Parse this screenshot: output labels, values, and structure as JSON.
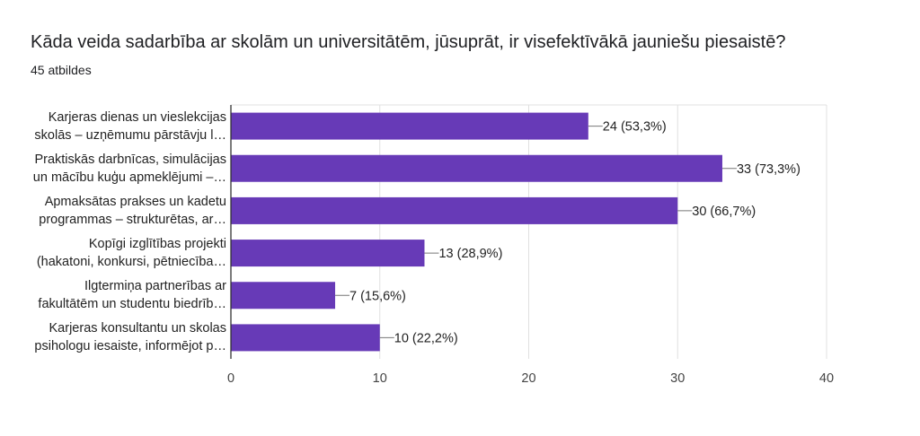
{
  "header": {
    "question": "Kāda veida sadarbība ar skolām un universitātēm, jūsuprāt, ir visefektīvākā jauniešu piesaistē?",
    "response_count": "45 atbildes"
  },
  "chart_data": {
    "type": "bar",
    "orientation": "horizontal",
    "title": "Kāda veida sadarbība ar skolām un universitātēm, jūsuprāt, ir visefektīvākā jauniešu piesaistē?",
    "categories": [
      [
        "Karjeras dienas un vieslekcijas",
        "skolās – uzņēmumu pārstāvju l…"
      ],
      [
        "Praktiskās darbnīcas, simulācijas",
        "un mācību kuģu apmeklējumi –…"
      ],
      [
        "Apmaksātas prakses un kadetu",
        "programmas – strukturētas, ar…"
      ],
      [
        "Kopīgi izglītības projekti",
        "(hakatoni, konkursi, pētniecība…"
      ],
      [
        "Ilgtermiņa partnerības ar",
        "fakultātēm un studentu biedrīb…"
      ],
      [
        "Karjeras konsultantu un skolas",
        "psihologu iesaiste, informējot p…"
      ]
    ],
    "values": [
      24,
      33,
      30,
      13,
      7,
      10
    ],
    "data_labels": [
      "24 (53,3%)",
      "33 (73,3%)",
      "30 (66,7%)",
      "13 (28,9%)",
      "7 (15,6%)",
      "10 (22,2%)"
    ],
    "xlim": [
      0,
      40
    ],
    "xticks": [
      "0",
      "10",
      "20",
      "30",
      "40"
    ],
    "grid": true,
    "bar_color": "#673ab7"
  }
}
